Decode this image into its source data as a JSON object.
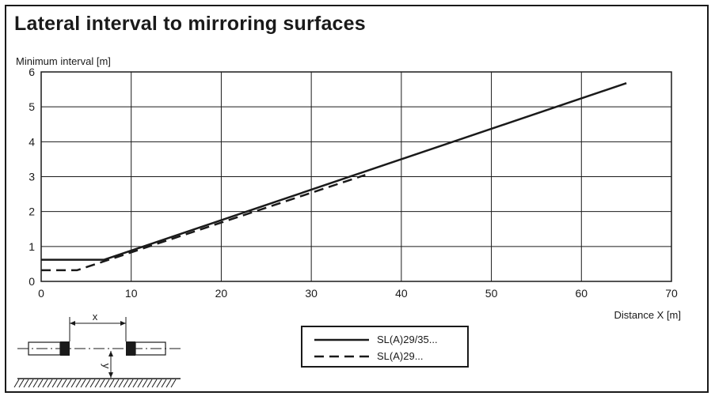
{
  "title": "Lateral interval to mirroring surfaces",
  "chart_data": {
    "type": "line",
    "title": "Lateral interval to mirroring surfaces",
    "ylabel": "Minimum interval [m]",
    "xlabel": "Distance X [m]",
    "xlim": [
      0,
      70
    ],
    "ylim": [
      0,
      6
    ],
    "x_ticks": [
      0,
      10,
      20,
      30,
      40,
      50,
      60,
      70
    ],
    "y_ticks": [
      0,
      1,
      2,
      3,
      4,
      5,
      6
    ],
    "grid": true,
    "legend_position": "bottom-center",
    "series": [
      {
        "name": "SL(A)29/35...",
        "style": "solid",
        "x": [
          0,
          7,
          65
        ],
        "y": [
          0.62,
          0.62,
          5.68
        ]
      },
      {
        "name": "SL(A)29...",
        "style": "dashed",
        "x": [
          0,
          4,
          36
        ],
        "y": [
          0.32,
          0.32,
          3.05
        ]
      }
    ]
  },
  "diagram": {
    "x_label": "x",
    "y_label": "y"
  }
}
